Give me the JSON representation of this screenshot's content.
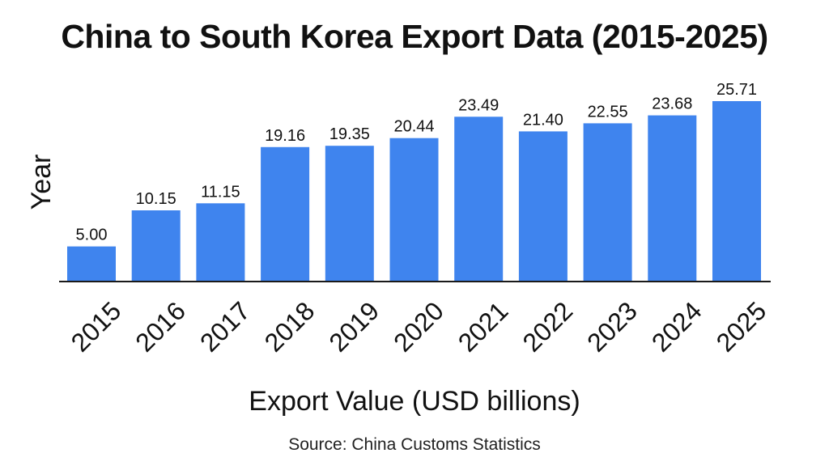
{
  "chart_data": {
    "type": "bar",
    "title": "China to South Korea Export Data (2015-2025)",
    "xlabel": "Export Value (USD billions)",
    "ylabel": "Year",
    "categories": [
      "2015",
      "2016",
      "2017",
      "2018",
      "2019",
      "2020",
      "2021",
      "2022",
      "2023",
      "2024",
      "2025"
    ],
    "values": [
      5.0,
      10.15,
      11.15,
      19.16,
      19.35,
      20.44,
      23.49,
      21.4,
      22.55,
      23.68,
      25.71
    ],
    "value_labels": [
      "5.00",
      "10.15",
      "11.15",
      "19.16",
      "19.35",
      "20.44",
      "23.49",
      "21.40",
      "22.55",
      "23.68",
      "25.71"
    ],
    "source": "Source: China Customs Statistics",
    "bar_color": "#3f84ee",
    "grid": false,
    "legend": "none"
  }
}
